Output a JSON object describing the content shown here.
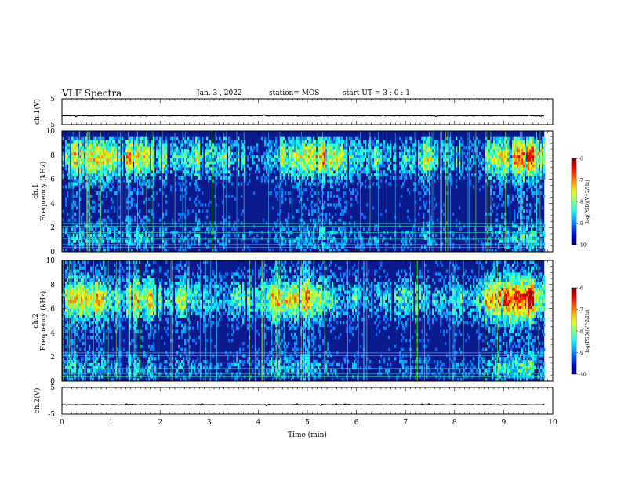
{
  "header": {
    "title": "VLF Spectra",
    "date": "Jan. 3 , 2022",
    "station": "station= MOS",
    "start_ut": "start UT = 3 : 0 : 1"
  },
  "chart_data": {
    "type": "heatmap",
    "xlabel": "Time (min)",
    "xlim": [
      0,
      10
    ],
    "xticks": [
      "0",
      "1",
      "2",
      "3",
      "4",
      "5",
      "6",
      "7",
      "8",
      "9",
      "10"
    ],
    "panels": [
      {
        "id": "ch1-waveform",
        "type": "line",
        "ylabel": "ch.1(V)",
        "ylim": [
          -5,
          5
        ],
        "yticks": [
          "5",
          "-5"
        ],
        "trace_level_V": -1.5
      },
      {
        "id": "ch1-spectrogram",
        "type": "heatmap",
        "ylabel": "ch.1 Frequency (kHz)",
        "ylim": [
          0,
          10
        ],
        "yticks": [
          "0",
          "2",
          "4",
          "6",
          "8",
          "10"
        ],
        "colorbar": {
          "label": "log(PSD)(V^2/Hz)",
          "range": [
            -10,
            -6
          ],
          "ticks": [
            "-6",
            "-7",
            "-8",
            "-9",
            "-10"
          ]
        }
      },
      {
        "id": "ch2-spectrogram",
        "type": "heatmap",
        "ylabel": "ch.2 Frequency (kHz)",
        "ylim": [
          0,
          10
        ],
        "yticks": [
          "0",
          "2",
          "4",
          "6",
          "8",
          "10"
        ],
        "colorbar": {
          "label": "log(PSD)(V^2/Hz)",
          "range": [
            -10,
            -6
          ],
          "ticks": [
            "-6",
            "-7",
            "-8",
            "-9",
            "-10"
          ]
        }
      },
      {
        "id": "ch2-waveform",
        "type": "line",
        "ylabel": "ch.2(V)",
        "ylim": [
          -5,
          5
        ],
        "yticks": [
          "5",
          "-5"
        ],
        "trace_level_V": -1.5
      }
    ],
    "data_end_min": 9.83
  }
}
